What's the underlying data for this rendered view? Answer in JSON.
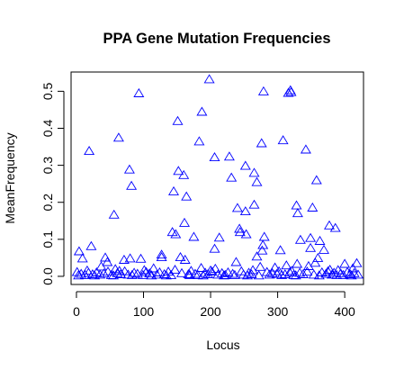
{
  "chart_data": {
    "type": "scatter",
    "title": "PPA Gene Mutation Frequencies",
    "xlabel": "Locus",
    "ylabel": "MeanFrequency",
    "xlim": [
      -8,
      428
    ],
    "ylim": [
      -0.022,
      0.552
    ],
    "x_ticks": [
      0,
      100,
      200,
      300,
      400
    ],
    "x_tick_labels": [
      "0",
      "100",
      "200",
      "300",
      "400"
    ],
    "y_ticks": [
      0.0,
      0.1,
      0.2,
      0.3,
      0.4,
      0.5
    ],
    "y_tick_labels": [
      "0.0",
      "0.1",
      "0.2",
      "0.3",
      "0.4",
      "0.5"
    ],
    "marker": "open-triangle",
    "marker_color": "#0000ff",
    "axis_color": "#000000",
    "grid": false,
    "series": [
      {
        "name": "MeanFrequency",
        "points": [
          [
            19,
            0.337
          ],
          [
            63,
            0.373
          ],
          [
            79,
            0.287
          ],
          [
            82,
            0.243
          ],
          [
            93,
            0.493
          ],
          [
            56,
            0.165
          ],
          [
            145,
            0.228
          ],
          [
            151,
            0.418
          ],
          [
            152,
            0.283
          ],
          [
            160,
            0.272
          ],
          [
            164,
            0.214
          ],
          [
            161,
            0.143
          ],
          [
            175,
            0.105
          ],
          [
            143,
            0.118
          ],
          [
            148,
            0.112
          ],
          [
            183,
            0.363
          ],
          [
            187,
            0.443
          ],
          [
            198,
            0.531
          ],
          [
            206,
            0.32
          ],
          [
            206,
            0.073
          ],
          [
            213,
            0.103
          ],
          [
            228,
            0.322
          ],
          [
            231,
            0.265
          ],
          [
            240,
            0.183
          ],
          [
            252,
            0.297
          ],
          [
            265,
            0.278
          ],
          [
            252,
            0.174
          ],
          [
            269,
            0.253
          ],
          [
            265,
            0.192
          ],
          [
            276,
            0.358
          ],
          [
            279,
            0.498
          ],
          [
            243,
            0.127
          ],
          [
            244,
            0.118
          ],
          [
            253,
            0.112
          ],
          [
            280,
            0.105
          ],
          [
            278,
            0.083
          ],
          [
            277,
            0.068
          ],
          [
            269,
            0.052
          ],
          [
            304,
            0.069
          ],
          [
            308,
            0.366
          ],
          [
            316,
            0.494
          ],
          [
            319,
            0.501
          ],
          [
            320,
            0.496
          ],
          [
            328,
            0.19
          ],
          [
            330,
            0.169
          ],
          [
            334,
            0.097
          ],
          [
            342,
            0.341
          ],
          [
            349,
            0.102
          ],
          [
            349,
            0.075
          ],
          [
            352,
            0.184
          ],
          [
            358,
            0.258
          ],
          [
            363,
            0.094
          ],
          [
            369,
            0.07
          ],
          [
            377,
            0.136
          ],
          [
            386,
            0.129
          ],
          [
            4,
            0.066
          ],
          [
            9,
            0.047
          ],
          [
            22,
            0.08
          ],
          [
            43,
            0.049
          ],
          [
            46,
            0.037
          ],
          [
            71,
            0.043
          ],
          [
            80,
            0.047
          ],
          [
            96,
            0.046
          ],
          [
            127,
            0.057
          ],
          [
            127,
            0.05
          ],
          [
            155,
            0.05
          ],
          [
            162,
            0.043
          ],
          [
            238,
            0.037
          ],
          [
            313,
            0.028
          ],
          [
            329,
            0.032
          ],
          [
            356,
            0.035
          ],
          [
            360,
            0.048
          ],
          [
            400,
            0.032
          ],
          [
            412,
            0.02
          ],
          [
            418,
            0.034
          ],
          [
            37,
            0.025
          ],
          [
            58,
            0.018
          ],
          [
            115,
            0.02
          ],
          [
            186,
            0.021
          ],
          [
            207,
            0.019
          ],
          [
            274,
            0.024
          ],
          [
            296,
            0.022
          ],
          [
            346,
            0.026
          ],
          [
            390,
            0.015
          ],
          [
            1,
            0.01
          ],
          [
            7,
            0.005
          ],
          [
            13,
            0.002
          ],
          [
            18,
            0.008
          ],
          [
            24,
            0.004
          ],
          [
            30,
            0.009
          ],
          [
            35,
            0.003
          ],
          [
            41,
            0.006
          ],
          [
            47,
            0.011
          ],
          [
            52,
            0.002
          ],
          [
            61,
            0.007
          ],
          [
            66,
            0.004
          ],
          [
            72,
            0.012
          ],
          [
            77,
            0.003
          ],
          [
            86,
            0.008
          ],
          [
            91,
            0.005
          ],
          [
            99,
            0.002
          ],
          [
            104,
            0.01
          ],
          [
            109,
            0.006
          ],
          [
            120,
            0.003
          ],
          [
            124,
            0.009
          ],
          [
            131,
            0.004
          ],
          [
            137,
            0.011
          ],
          [
            141,
            0.002
          ],
          [
            157,
            0.007
          ],
          [
            167,
            0.004
          ],
          [
            171,
            0.013
          ],
          [
            177,
            0.005
          ],
          [
            181,
            0.002
          ],
          [
            192,
            0.008
          ],
          [
            196,
            0.004
          ],
          [
            202,
            0.011
          ],
          [
            211,
            0.003
          ],
          [
            217,
            0.007
          ],
          [
            222,
            0.002
          ],
          [
            226,
            0.009
          ],
          [
            233,
            0.005
          ],
          [
            246,
            0.012
          ],
          [
            249,
            0.003
          ],
          [
            257,
            0.008
          ],
          [
            261,
            0.004
          ],
          [
            284,
            0.01
          ],
          [
            288,
            0.003
          ],
          [
            292,
            0.007
          ],
          [
            299,
            0.005
          ],
          [
            302,
            0.012
          ],
          [
            311,
            0.004
          ],
          [
            318,
            0.009
          ],
          [
            324,
            0.002
          ],
          [
            333,
            0.008
          ],
          [
            338,
            0.004
          ],
          [
            344,
            0.011
          ],
          [
            354,
            0.003
          ],
          [
            366,
            0.009
          ],
          [
            372,
            0.005
          ],
          [
            375,
            0.012
          ],
          [
            381,
            0.003
          ],
          [
            384,
            0.008
          ],
          [
            394,
            0.006
          ],
          [
            398,
            0.002
          ],
          [
            404,
            0.01
          ],
          [
            408,
            0.004
          ],
          [
            414,
            0.007
          ],
          [
            420,
            0.003
          ],
          [
            3,
            0.001
          ],
          [
            27,
            0.001
          ],
          [
            55,
            0.001
          ],
          [
            83,
            0.002
          ],
          [
            112,
            0.001
          ],
          [
            134,
            0.001
          ],
          [
            169,
            0.002
          ],
          [
            189,
            0.001
          ],
          [
            220,
            0.001
          ],
          [
            236,
            0.002
          ],
          [
            255,
            0.001
          ],
          [
            272,
            0.001
          ],
          [
            306,
            0.002
          ],
          [
            327,
            0.001
          ],
          [
            362,
            0.001
          ],
          [
            388,
            0.002
          ],
          [
            410,
            0.001
          ],
          [
            16,
            0.014
          ],
          [
            64,
            0.013
          ],
          [
            101,
            0.015
          ],
          [
            147,
            0.016
          ],
          [
            200,
            0.014
          ],
          [
            263,
            0.015
          ],
          [
            321,
            0.013
          ],
          [
            378,
            0.016
          ]
        ]
      }
    ]
  }
}
